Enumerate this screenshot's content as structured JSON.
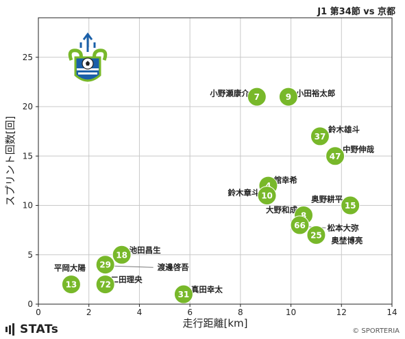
{
  "header": {
    "title": "J1 第34節 vs 京都"
  },
  "footer": {
    "brand": "STATs",
    "copyright": "© SPORTERIA"
  },
  "colors": {
    "point": "#78b82a",
    "point_text": "#ffffff",
    "grid": "#c8c8c8",
    "axis": "#222222"
  },
  "chart_data": {
    "type": "scatter",
    "title": "",
    "xlabel": "走行距離[km]",
    "ylabel": "スプリント回数[回]",
    "xlim": [
      0,
      14
    ],
    "ylim": [
      0,
      29
    ],
    "xticks": [
      0,
      2,
      4,
      6,
      8,
      10,
      12,
      14
    ],
    "yticks": [
      0,
      5,
      10,
      15,
      20,
      25
    ],
    "grid": true,
    "points": [
      {
        "number": "7",
        "name": "小野瀬康介",
        "x": 8.65,
        "y": 21
      },
      {
        "number": "9",
        "name": "小田裕太郎",
        "x": 9.9,
        "y": 21
      },
      {
        "number": "37",
        "name": "鈴木雄斗",
        "x": 11.15,
        "y": 17
      },
      {
        "number": "47",
        "name": "中野伸哉",
        "x": 11.75,
        "y": 15
      },
      {
        "number": "4",
        "name": "舘幸希",
        "x": 9.1,
        "y": 12
      },
      {
        "number": "10",
        "name": "鈴木章斗",
        "x": 9.05,
        "y": 11
      },
      {
        "number": "15",
        "name": "奥野耕平",
        "x": 12.35,
        "y": 10
      },
      {
        "number": "8",
        "name": "大野和成",
        "x": 10.5,
        "y": 9
      },
      {
        "number": "66",
        "name": "松本大弥",
        "x": 10.35,
        "y": 8
      },
      {
        "number": "25",
        "name": "奥埜博亮",
        "x": 11.0,
        "y": 7
      },
      {
        "number": "18",
        "name": "池田昌生",
        "x": 3.3,
        "y": 5
      },
      {
        "number": "29",
        "name": "渡邊啓吾",
        "x": 2.65,
        "y": 4
      },
      {
        "number": "13",
        "name": "平岡大陽",
        "x": 1.3,
        "y": 2
      },
      {
        "number": "72",
        "name": "二田理央",
        "x": 2.65,
        "y": 2
      },
      {
        "number": "31",
        "name": "真田幸太",
        "x": 5.75,
        "y": 1
      }
    ]
  }
}
